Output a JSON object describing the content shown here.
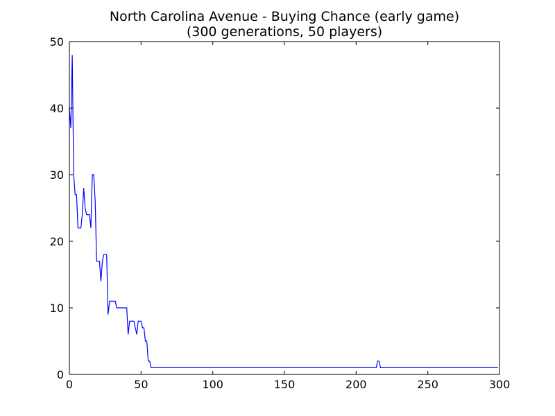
{
  "chart_data": {
    "type": "line",
    "title_line1": "North Carolina Avenue - Buying Chance (early game)",
    "title_line2": "(300 generations, 50 players)",
    "xlabel": "",
    "ylabel": "",
    "xlim": [
      0,
      300
    ],
    "ylim": [
      0,
      50
    ],
    "xticks": [
      0,
      50,
      100,
      150,
      200,
      250,
      300
    ],
    "yticks": [
      0,
      10,
      20,
      30,
      40,
      50
    ],
    "grid": false,
    "line_color": "#0000ff",
    "series": [
      {
        "points": [
          [
            0,
            40
          ],
          [
            1,
            37
          ],
          [
            2,
            48
          ],
          [
            3,
            30
          ],
          [
            4,
            27
          ],
          [
            5,
            27
          ],
          [
            6,
            22
          ],
          [
            7,
            22
          ],
          [
            8,
            22
          ],
          [
            9,
            24
          ],
          [
            10,
            28
          ],
          [
            11,
            25
          ],
          [
            12,
            24
          ],
          [
            13,
            24
          ],
          [
            14,
            24
          ],
          [
            15,
            22
          ],
          [
            16,
            30
          ],
          [
            17,
            30
          ],
          [
            18,
            26
          ],
          [
            19,
            17
          ],
          [
            20,
            17
          ],
          [
            21,
            17
          ],
          [
            22,
            14
          ],
          [
            23,
            17
          ],
          [
            24,
            18
          ],
          [
            25,
            18
          ],
          [
            26,
            18
          ],
          [
            27,
            9
          ],
          [
            28,
            11
          ],
          [
            29,
            11
          ],
          [
            30,
            11
          ],
          [
            31,
            11
          ],
          [
            32,
            11
          ],
          [
            33,
            10
          ],
          [
            34,
            10
          ],
          [
            35,
            10
          ],
          [
            36,
            10
          ],
          [
            37,
            10
          ],
          [
            38,
            10
          ],
          [
            39,
            10
          ],
          [
            40,
            10
          ],
          [
            41,
            6
          ],
          [
            42,
            8
          ],
          [
            43,
            8
          ],
          [
            44,
            8
          ],
          [
            45,
            8
          ],
          [
            46,
            7
          ],
          [
            47,
            6
          ],
          [
            48,
            8
          ],
          [
            49,
            8
          ],
          [
            50,
            8
          ],
          [
            51,
            7
          ],
          [
            52,
            7
          ],
          [
            53,
            5
          ],
          [
            54,
            5
          ],
          [
            55,
            2
          ],
          [
            56,
            2
          ],
          [
            57,
            1
          ],
          [
            58,
            1
          ],
          [
            213,
            1
          ],
          [
            214,
            1
          ],
          [
            215,
            2
          ],
          [
            216,
            2
          ],
          [
            217,
            1
          ],
          [
            218,
            1
          ],
          [
            299,
            1
          ]
        ]
      }
    ]
  }
}
